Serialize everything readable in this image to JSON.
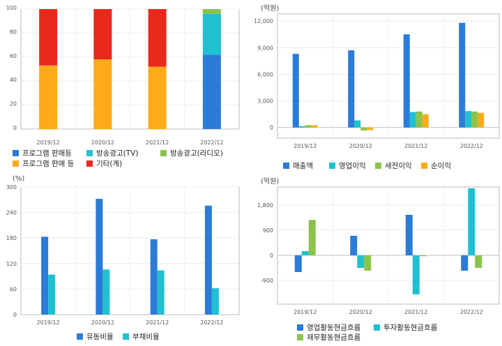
{
  "chart_data": [
    {
      "id": "c1",
      "type": "bar",
      "stacked": true,
      "categories": [
        "2019/12",
        "2020/12",
        "2021/12",
        "2022/12"
      ],
      "series": [
        {
          "name": "프로그램 판매등",
          "color": "#2b7bd8",
          "values": [
            0,
            0,
            0,
            62
          ]
        },
        {
          "name": "방송광고(TV)",
          "color": "#1fc0cf",
          "values": [
            0,
            0,
            0,
            34
          ]
        },
        {
          "name": "방송광고(라디오)",
          "color": "#8bc34a",
          "values": [
            0,
            0,
            0,
            4
          ]
        },
        {
          "name": "프로그램 판매 등",
          "color": "#ffaa1a",
          "values": [
            53,
            58,
            52,
            0
          ]
        },
        {
          "name": "기타(계)",
          "color": "#e8291c",
          "values": [
            47,
            42,
            48,
            0
          ]
        }
      ],
      "yticks": [
        "0",
        "20",
        "40",
        "60",
        "80",
        "100"
      ],
      "ylim": [
        0,
        100
      ],
      "unit": "",
      "grid": true,
      "legend_position": "bottom"
    },
    {
      "id": "c2",
      "type": "bar",
      "categories": [
        "2019/12",
        "2020/12",
        "2021/12",
        "2022/12"
      ],
      "series": [
        {
          "name": "매출액",
          "color": "#2b7bd8",
          "values": [
            8300,
            8700,
            10500,
            11800
          ]
        },
        {
          "name": "영업이익",
          "color": "#1fc0cf",
          "values": [
            150,
            800,
            1750,
            1850
          ]
        },
        {
          "name": "세전이익",
          "color": "#8bc34a",
          "values": [
            250,
            -350,
            1800,
            1800
          ]
        },
        {
          "name": "순이익",
          "color": "#ffaa1a",
          "values": [
            250,
            -300,
            1500,
            1650
          ]
        }
      ],
      "yticks": [
        "0",
        "3,000",
        "6,000",
        "9,000",
        "12,000"
      ],
      "ylim": [
        -1200,
        12800
      ],
      "unit": "(억원)",
      "grid": true,
      "legend_position": "bottom"
    },
    {
      "id": "c3",
      "type": "bar",
      "categories": [
        "2019/12",
        "2020/12",
        "2021/12",
        "2022/12"
      ],
      "series": [
        {
          "name": "유동비율",
          "color": "#2b7bd8",
          "values": [
            183,
            272,
            177,
            256
          ]
        },
        {
          "name": "부채비율",
          "color": "#1fc0cf",
          "values": [
            94,
            106,
            104,
            62
          ]
        }
      ],
      "yticks": [
        "0",
        "60",
        "120",
        "180",
        "240",
        "300"
      ],
      "ylim": [
        0,
        300
      ],
      "unit": "(%)",
      "grid": true,
      "legend_position": "bottom"
    },
    {
      "id": "c4",
      "type": "bar",
      "categories": [
        "2019/12",
        "2020/12",
        "2021/12",
        "2022/12"
      ],
      "series": [
        {
          "name": "영업활동현금흐름",
          "color": "#2b7bd8",
          "values": [
            -600,
            700,
            1450,
            -550
          ]
        },
        {
          "name": "투자활동현금흐름",
          "color": "#1fc0cf",
          "values": [
            150,
            -450,
            -1400,
            2400
          ]
        },
        {
          "name": "재무활동현금흐름",
          "color": "#8bc34a",
          "values": [
            1270,
            -550,
            -30,
            -450
          ]
        }
      ],
      "yticks": [
        "-900",
        "0",
        "900",
        "1,800"
      ],
      "ylim": [
        -1750,
        2450
      ],
      "unit": "(억원)",
      "grid": true,
      "legend_position": "bottom"
    }
  ]
}
